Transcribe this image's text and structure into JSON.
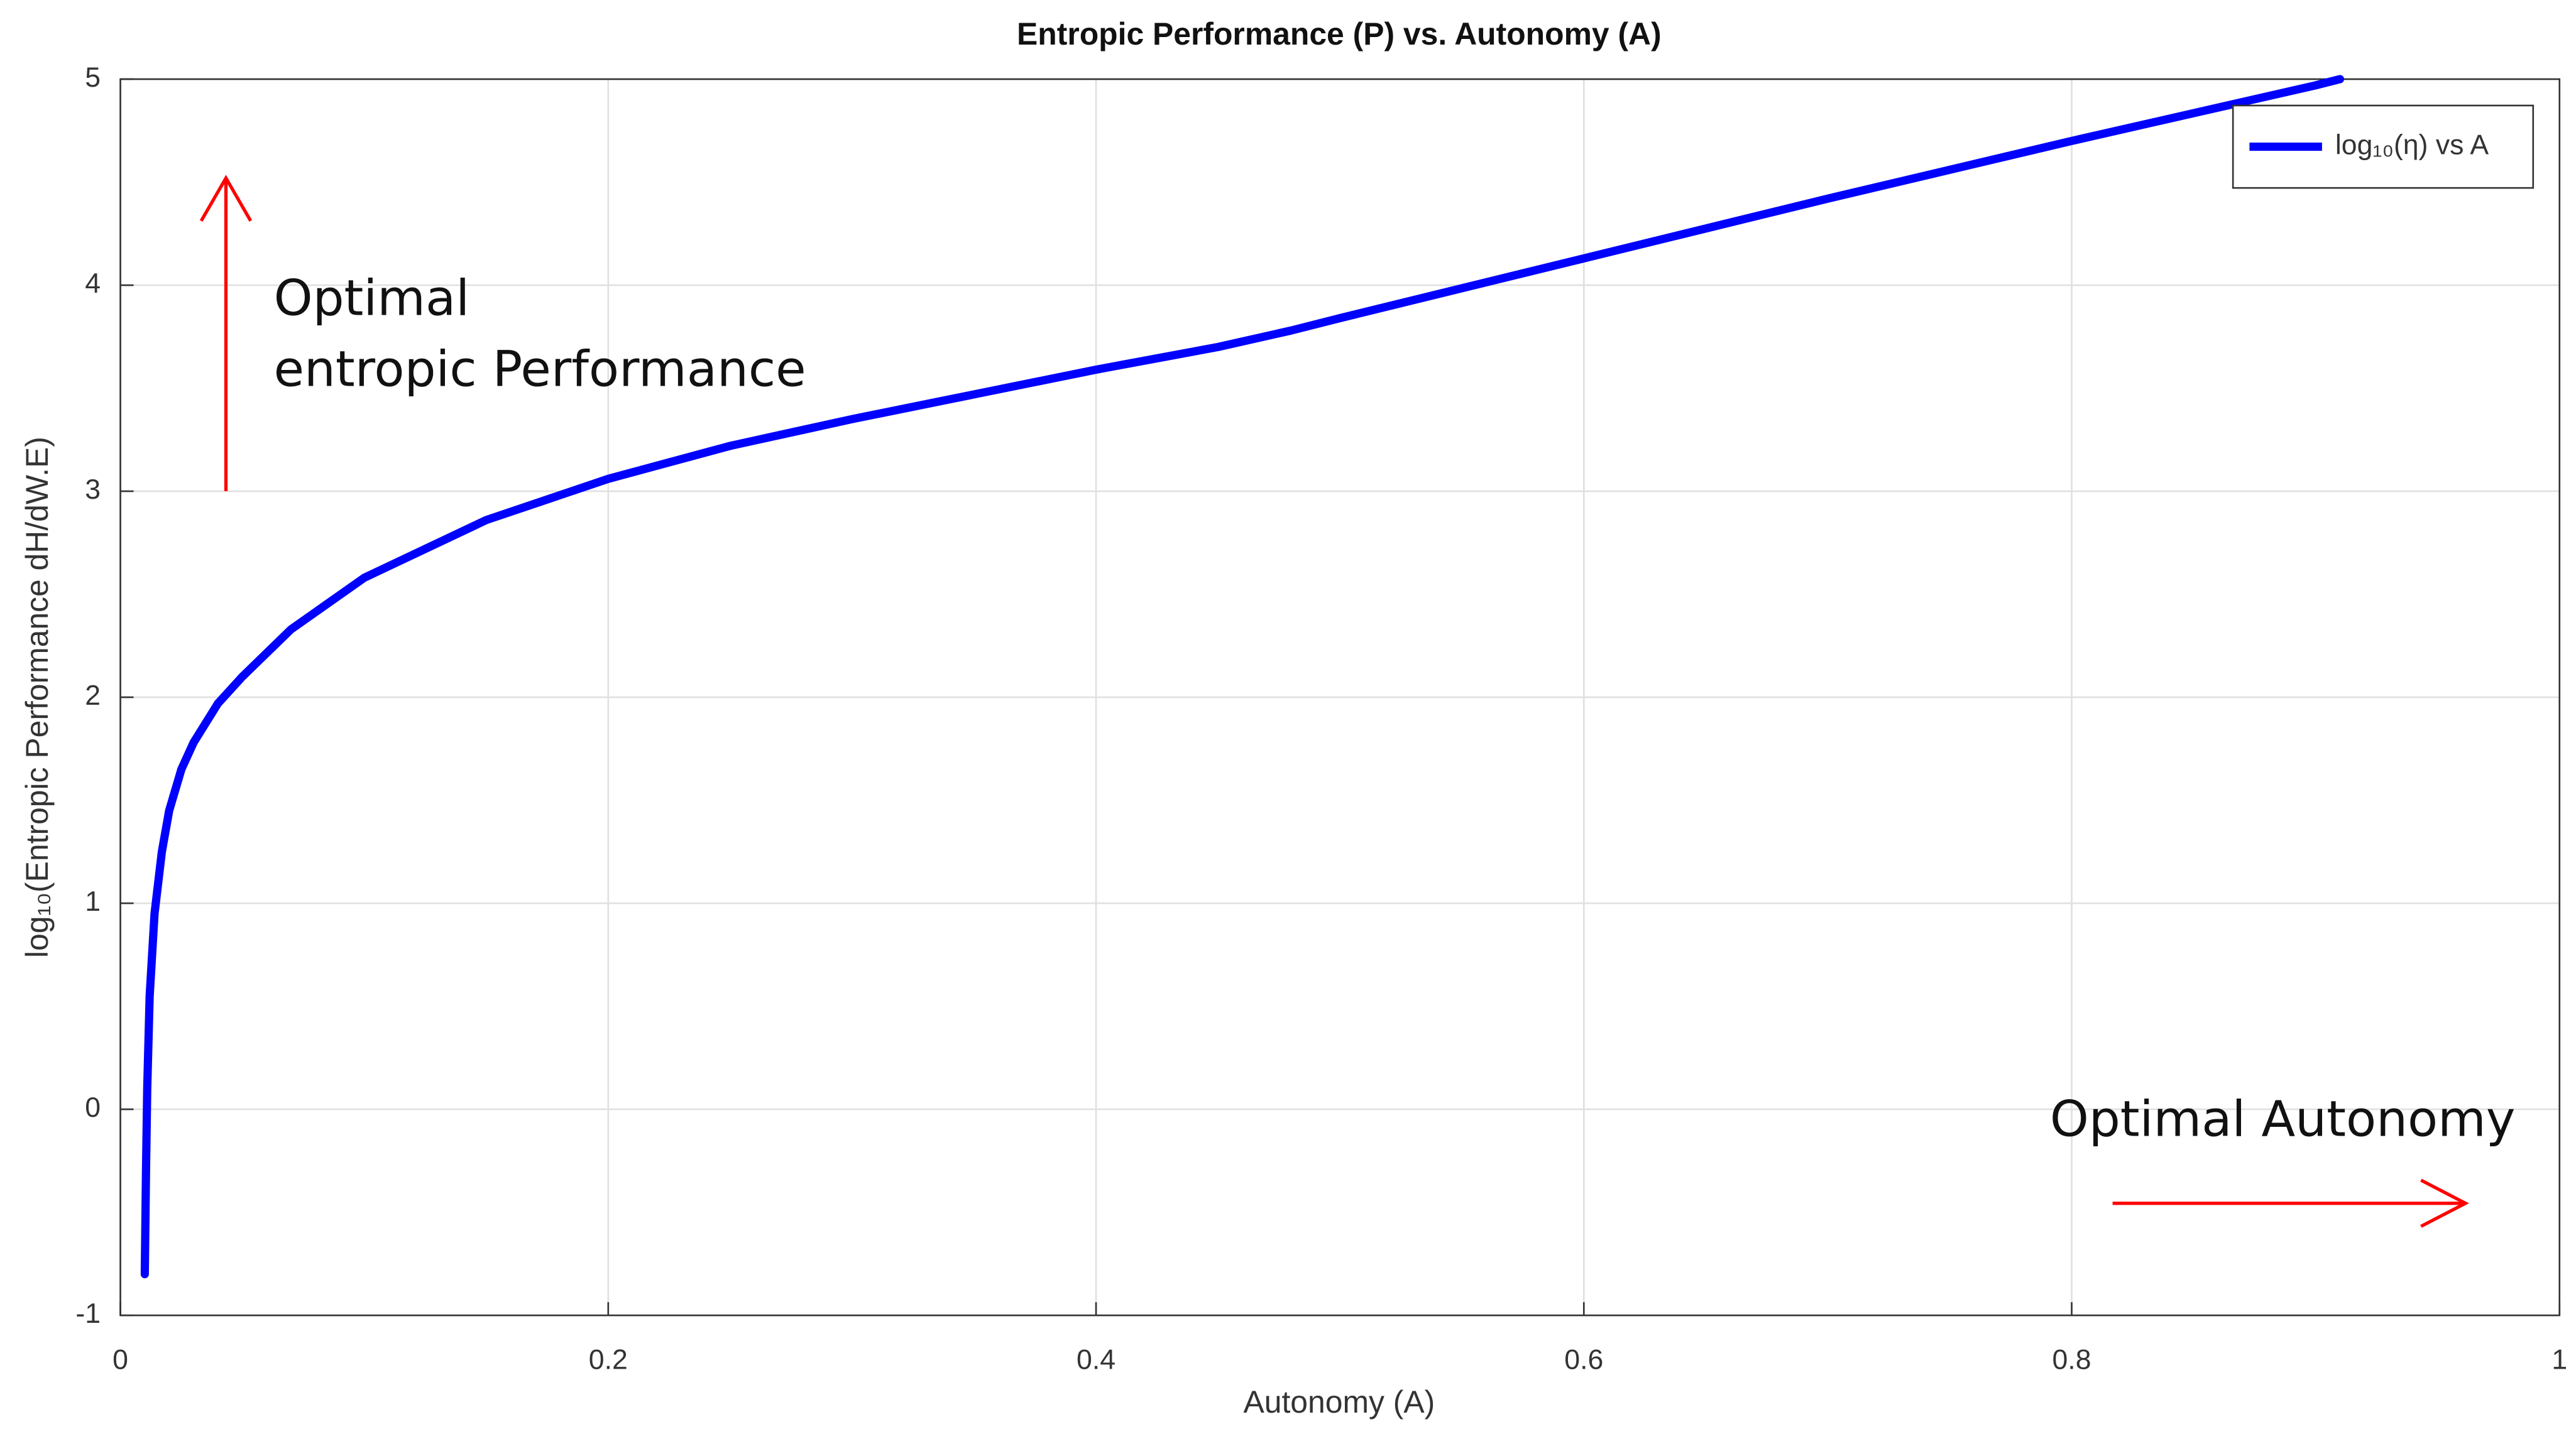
{
  "chart_data": {
    "type": "line",
    "title": "Entropic Performance (P) vs. Autonomy (A)",
    "xlabel": "Autonomy (A)",
    "ylabel": "log₁₀(Entropic Performance dH/dW.E)",
    "x": [
      0.01,
      0.0105,
      0.011,
      0.012,
      0.014,
      0.017,
      0.02,
      0.025,
      0.03,
      0.04,
      0.05,
      0.07,
      0.1,
      0.15,
      0.2,
      0.25,
      0.3,
      0.35,
      0.4,
      0.45,
      0.48,
      0.5,
      0.6,
      0.7,
      0.8,
      0.9,
      0.91
    ],
    "series": [
      {
        "name": "log₁₀(η) vs A",
        "color": "#0000ff",
        "values": [
          -0.8,
          -0.3,
          0.1,
          0.55,
          0.95,
          1.25,
          1.45,
          1.65,
          1.78,
          1.97,
          2.1,
          2.33,
          2.58,
          2.86,
          3.06,
          3.22,
          3.35,
          3.47,
          3.59,
          3.7,
          3.78,
          3.84,
          4.13,
          4.42,
          4.7,
          4.97,
          5.0
        ]
      }
    ],
    "xlim": [
      0,
      1
    ],
    "xticks": [
      0,
      0.2,
      0.4,
      0.6,
      0.8,
      1
    ],
    "ylim": [
      -1,
      5
    ],
    "yticks": [
      -1,
      0,
      1,
      2,
      3,
      4,
      5
    ],
    "grid": true,
    "legend": "upper right",
    "annotations": [
      "Optimal",
      "entropic Performance",
      "Optimal Autonomy"
    ]
  }
}
